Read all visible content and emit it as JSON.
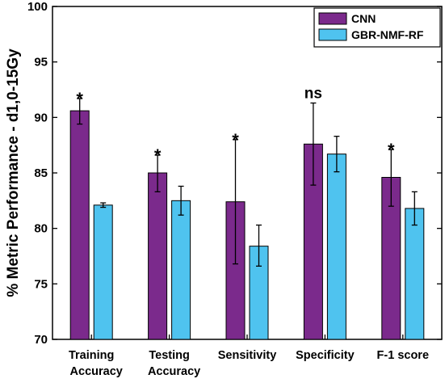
{
  "chart_data": {
    "type": "bar",
    "title": "",
    "xlabel": "",
    "ylabel": "% Metric Performance - d1,0-15Gy",
    "ylim": [
      70,
      100
    ],
    "yticks": [
      70,
      75,
      80,
      85,
      90,
      95,
      100
    ],
    "grid": false,
    "legend_position": "top-right",
    "categories": [
      [
        "Training",
        "Accuracy"
      ],
      [
        "Testing",
        "Accuracy"
      ],
      [
        "Sensitivity"
      ],
      [
        "Specificity"
      ],
      [
        "F-1 score"
      ]
    ],
    "series": [
      {
        "name": "CNN",
        "color": "#7b2a8c",
        "values": [
          90.6,
          85.0,
          82.4,
          87.6,
          84.6
        ],
        "error_low": [
          89.4,
          83.3,
          76.8,
          83.9,
          82.0
        ],
        "error_high": [
          91.7,
          86.6,
          88.0,
          91.3,
          87.1
        ]
      },
      {
        "name": "GBR-NMF-RF",
        "color": "#4fc3ef",
        "values": [
          82.1,
          82.5,
          78.4,
          86.7,
          81.8
        ],
        "error_low": [
          81.9,
          81.2,
          76.6,
          85.1,
          80.3
        ],
        "error_high": [
          82.3,
          83.8,
          80.3,
          88.3,
          83.3
        ]
      }
    ],
    "annotations": [
      "*",
      "*",
      "*",
      "ns",
      "*"
    ]
  }
}
